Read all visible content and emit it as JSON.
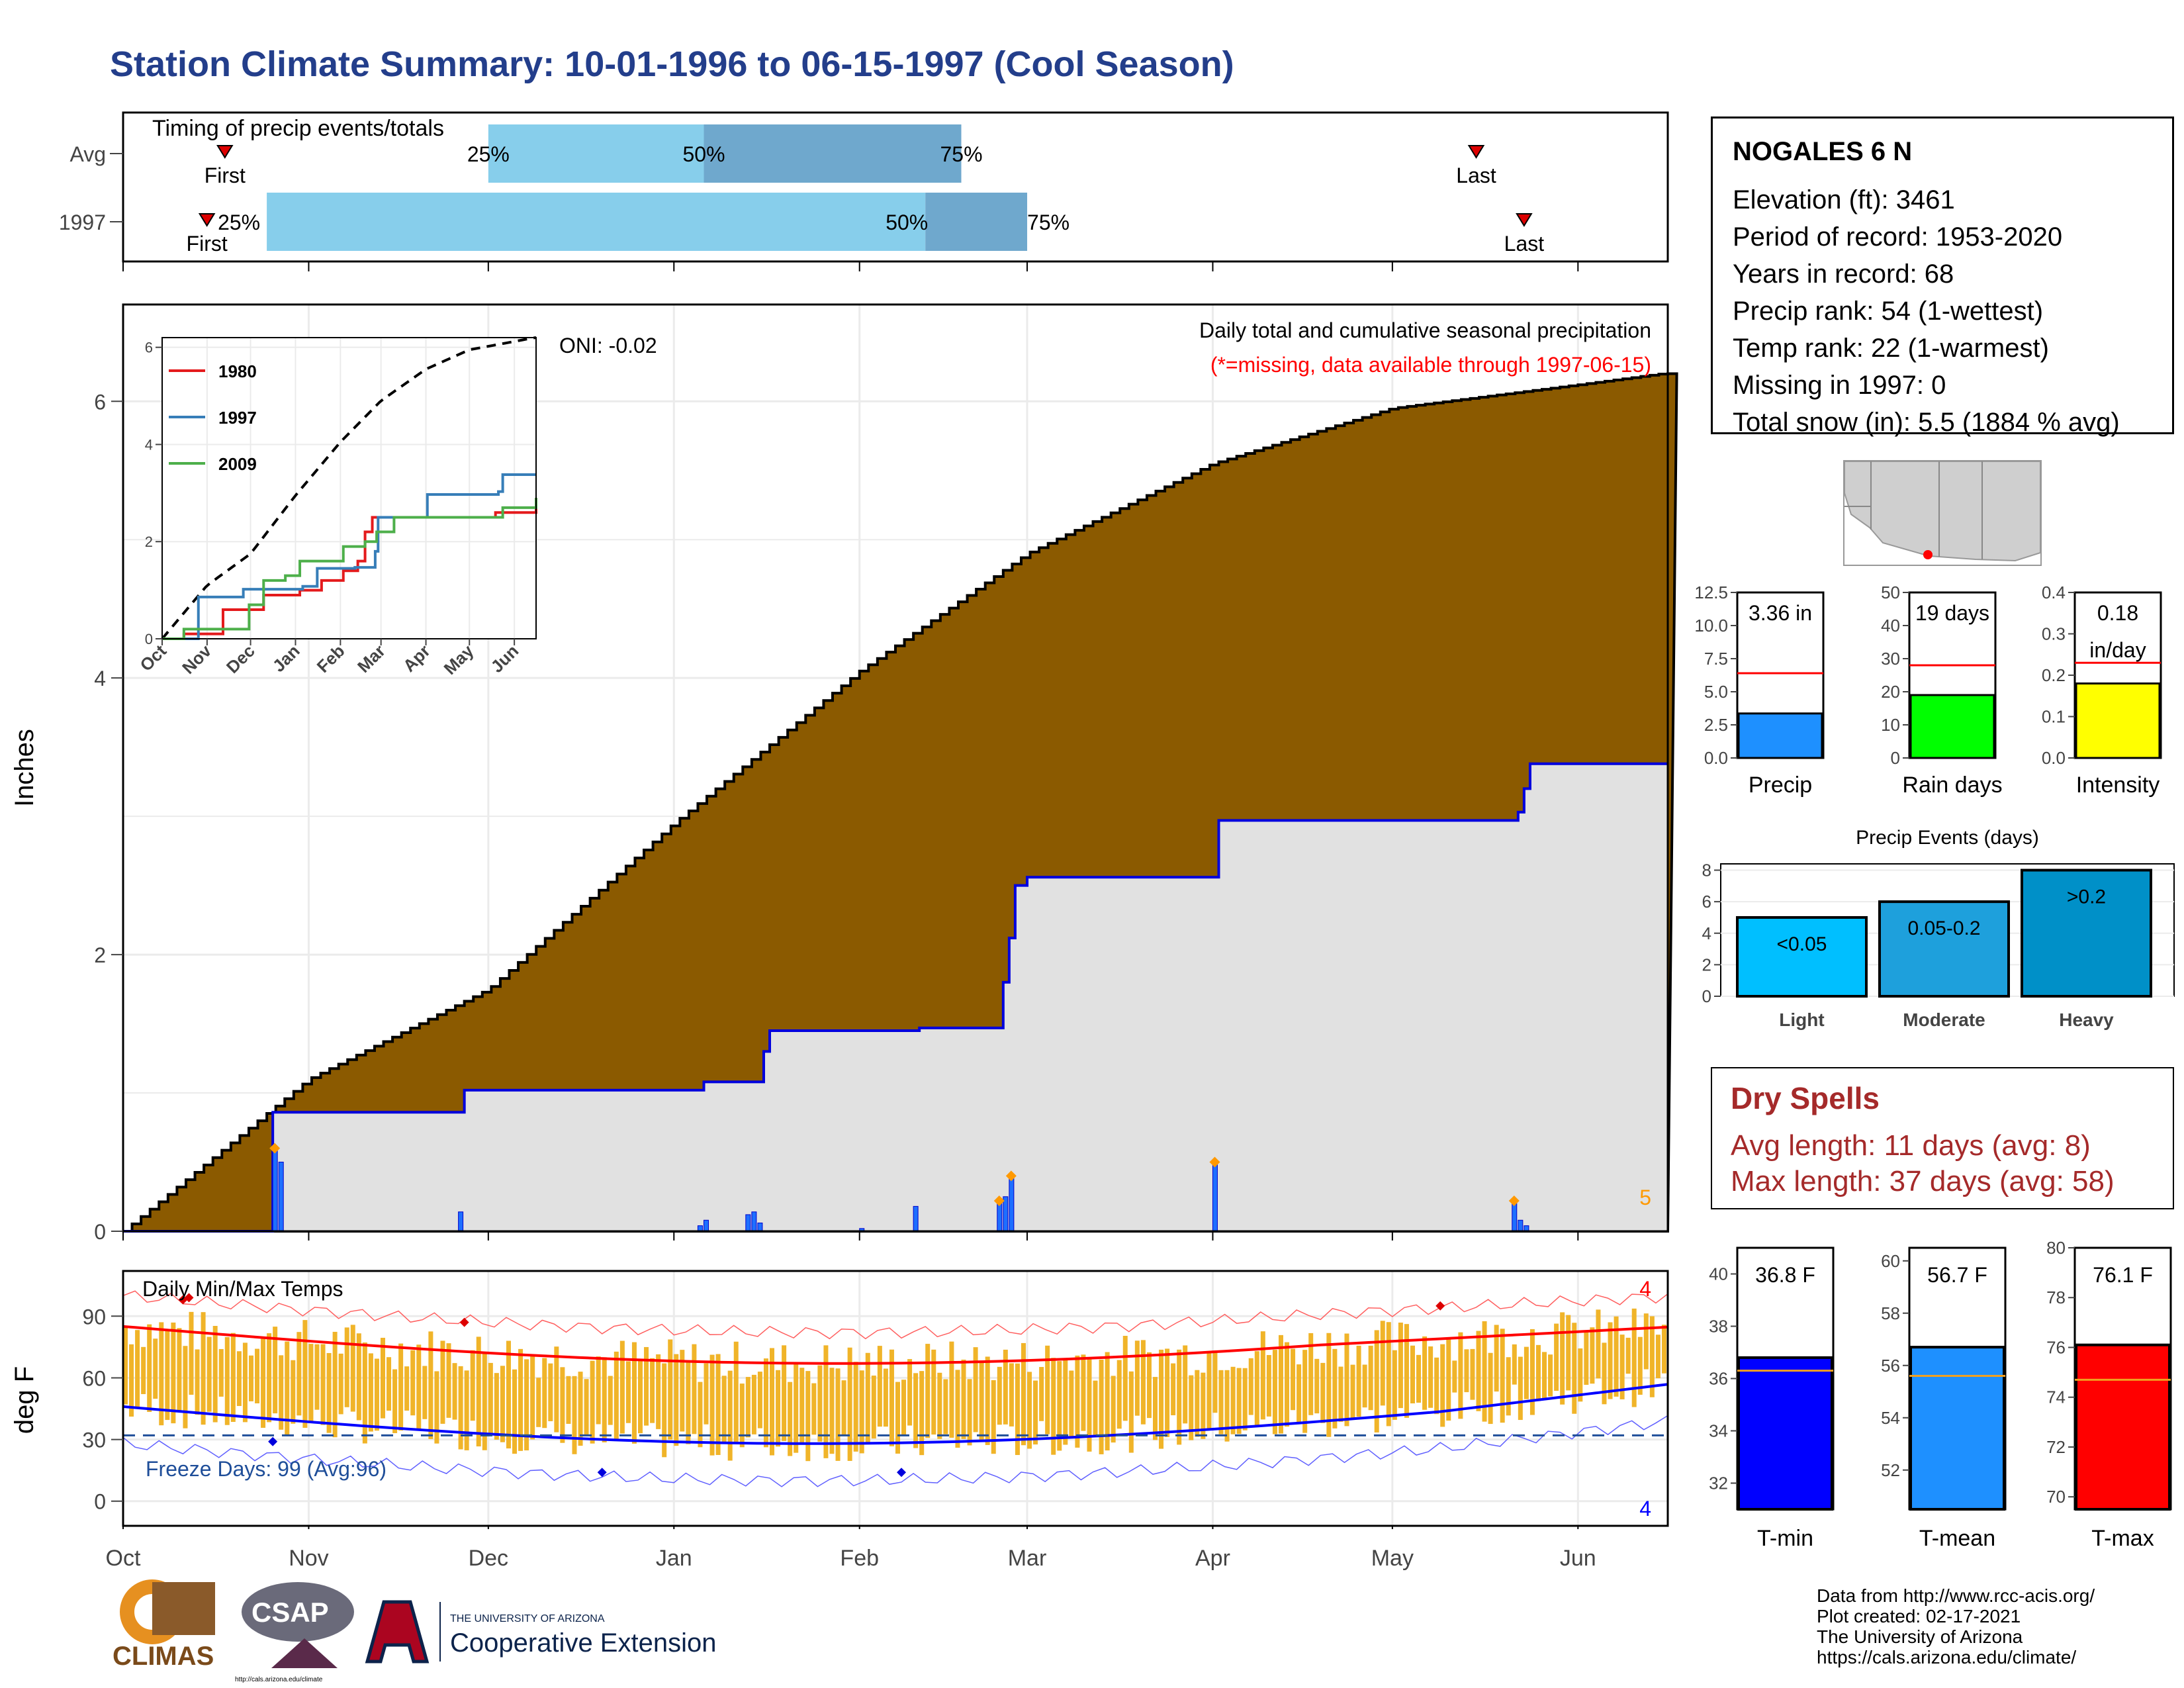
{
  "title": "Station Climate Summary: 10-01-1996 to 06-15-1997 (Cool Season)",
  "colors": {
    "title_blue": "#233e8b",
    "brown": "#8b5a00",
    "gray_fill": "#e1e1e1",
    "light_blue": "#87ceeb",
    "mid_blue": "#6fa8cd",
    "dry_red": "#a52a2a",
    "temp_bar": "#f0b429"
  },
  "timing": {
    "label": "Timing of precip events/totals",
    "rows": [
      {
        "name": "Avg",
        "first": "Oct 18",
        "q25": "Dec 01",
        "q50": "Jan 06",
        "q75": "Feb 18",
        "last": "May 15",
        "first_label": "First",
        "last_label": "Last",
        "q25_label": "25%",
        "q50_label": "50%",
        "q75_label": "75%"
      },
      {
        "name": "1997",
        "first": "Oct 15",
        "q25": "Oct 25",
        "q50": "Feb 12",
        "q75": "Mar 01",
        "last": "May 23",
        "first_label": "First",
        "last_label": "Last",
        "q25_label": "25%",
        "q50_label": "50%",
        "q75_label": "75%"
      }
    ]
  },
  "station": {
    "name": "NOGALES 6 N",
    "lines": [
      "Elevation (ft): 3461",
      "Period of record: 1953-2020",
      "Years in record: 68",
      "Precip rank: 54 (1-wettest)",
      "Temp rank: 22 (1-warmest)",
      "Missing in 1997: 0",
      "Total snow (in): 5.5 (1884 % avg)"
    ]
  },
  "precip_panel": {
    "ylabel": "Inches",
    "subtitle1": "Daily total and cumulative seasonal precipitation",
    "subtitle2": "(*=missing, data available through 1997-06-15)",
    "oni": "ONI: -0.02",
    "corner_count": "5"
  },
  "inset": {
    "legend": [
      "1980",
      "1997",
      "2009"
    ],
    "legend_colors": [
      "#e41a1c",
      "#377eb8",
      "#4daf4a"
    ],
    "yticks": [
      "0",
      "2",
      "4",
      "6"
    ],
    "xticks": [
      "Oct",
      "Nov",
      "Dec",
      "Jan",
      "Feb",
      "Mar",
      "Apr",
      "May",
      "Jun"
    ]
  },
  "summary_bars": [
    {
      "label": "Precip",
      "value": 3.36,
      "value_text": "3.36 in",
      "avg": 6.4,
      "ymax": 12.5,
      "yticks": [
        "0.0",
        "2.5",
        "5.0",
        "7.5",
        "10.0",
        "12.5"
      ],
      "tickvals": [
        0,
        2.5,
        5,
        7.5,
        10,
        12.5
      ],
      "color": "#1e90ff"
    },
    {
      "label": "Rain days",
      "value": 19,
      "value_text": "19 days",
      "avg": 28,
      "ymax": 50,
      "yticks": [
        "0",
        "10",
        "20",
        "30",
        "40",
        "50"
      ],
      "tickvals": [
        0,
        10,
        20,
        30,
        40,
        50
      ],
      "color": "#00ff00"
    },
    {
      "label": "Intensity",
      "value": 0.18,
      "value_text": "0.18",
      "value_text2": "in/day",
      "avg": 0.23,
      "ymax": 0.4,
      "yticks": [
        "0.0",
        "0.1",
        "0.2",
        "0.3",
        "0.4"
      ],
      "tickvals": [
        0,
        0.1,
        0.2,
        0.3,
        0.4
      ],
      "color": "#ffff00"
    }
  ],
  "precip_events": {
    "title": "Precip Events (days)",
    "categories": [
      "Light",
      "Moderate",
      "Heavy"
    ],
    "bar_labels": [
      "<0.05",
      "0.05-0.2",
      ">0.2"
    ],
    "values": [
      5,
      6,
      8
    ],
    "yticks": [
      "0",
      "2",
      "4",
      "6",
      "8"
    ],
    "colors": [
      "#00bfff",
      "#1ea0dc",
      "#0090c8"
    ]
  },
  "dry_spells": {
    "title": "Dry Spells",
    "line1": "Avg length: 11 days (avg: 8)",
    "line2": "Max length: 37 days (avg: 58)"
  },
  "temp_panel": {
    "label": "Daily Min/Max Temps",
    "ylabel": "deg F",
    "yticks": [
      "0",
      "30",
      "60",
      "90"
    ],
    "freeze": "Freeze Days: 99 (Avg:96)",
    "count_red": "4",
    "count_blue": "4"
  },
  "x_axis_months": [
    "Oct",
    "Nov",
    "Dec",
    "Jan",
    "Feb",
    "Mar",
    "Apr",
    "May",
    "Jun"
  ],
  "temp_bars": [
    {
      "label": "T-min",
      "value": 36.8,
      "value_text": "36.8 F",
      "avg": 36.3,
      "ymin": 31,
      "ymax": 41,
      "yticks": [
        "32",
        "34",
        "36",
        "38",
        "40"
      ],
      "tickvals": [
        32,
        34,
        36,
        38,
        40
      ],
      "color": "#0000ff"
    },
    {
      "label": "T-mean",
      "value": 56.7,
      "value_text": "56.7 F",
      "avg": 55.6,
      "ymin": 50.5,
      "ymax": 60.5,
      "yticks": [
        "52",
        "54",
        "56",
        "58",
        "60"
      ],
      "tickvals": [
        52,
        54,
        56,
        58,
        60
      ],
      "color": "#1e90ff"
    },
    {
      "label": "T-max",
      "value": 76.1,
      "value_text": "76.1 F",
      "avg": 74.7,
      "ymin": 69.5,
      "ymax": 80,
      "yticks": [
        "70",
        "72",
        "74",
        "76",
        "78",
        "80"
      ],
      "tickvals": [
        70,
        72,
        74,
        76,
        78,
        80
      ],
      "color": "#ff0000"
    }
  ],
  "footer": {
    "lines": [
      "Data from http://www.rcc-acis.org/",
      "Plot created: 02-17-2021",
      "The University of Arizona",
      "https://cals.arizona.edu/climate/"
    ],
    "logo_climas": "CLIMAS",
    "logo_csap": "CSAP",
    "logo_csap_url": "http://cals.arizona.edu/climate",
    "logo_ua_top": "THE UNIVERSITY OF ARIZONA",
    "logo_ua_bottom": "Cooperative Extension"
  },
  "chart_data": [
    {
      "type": "area",
      "title": "Daily total and cumulative seasonal precipitation",
      "ylabel": "Inches",
      "ylim": [
        0,
        6.7
      ],
      "x": [
        "Oct 01",
        "Nov 01",
        "Dec 01",
        "Jan 01",
        "Feb 01",
        "Mar 01",
        "Apr 01",
        "May 01",
        "Jun 01",
        "Jun 15"
      ],
      "series": [
        {
          "name": "Avg cumulative",
          "values": [
            0,
            1.1,
            1.75,
            2.95,
            4.05,
            4.9,
            5.55,
            5.95,
            6.12,
            6.2
          ]
        },
        {
          "name": "1997 cumulative",
          "values": [
            0,
            0.86,
            1.02,
            1.1,
            1.47,
            2.56,
            2.97,
            3.03,
            3.38,
            3.38
          ]
        }
      ]
    },
    {
      "type": "bar",
      "title": "Precip Events (days)",
      "categories": [
        "Light",
        "Moderate",
        "Heavy"
      ],
      "values": [
        5,
        6,
        8
      ]
    }
  ]
}
